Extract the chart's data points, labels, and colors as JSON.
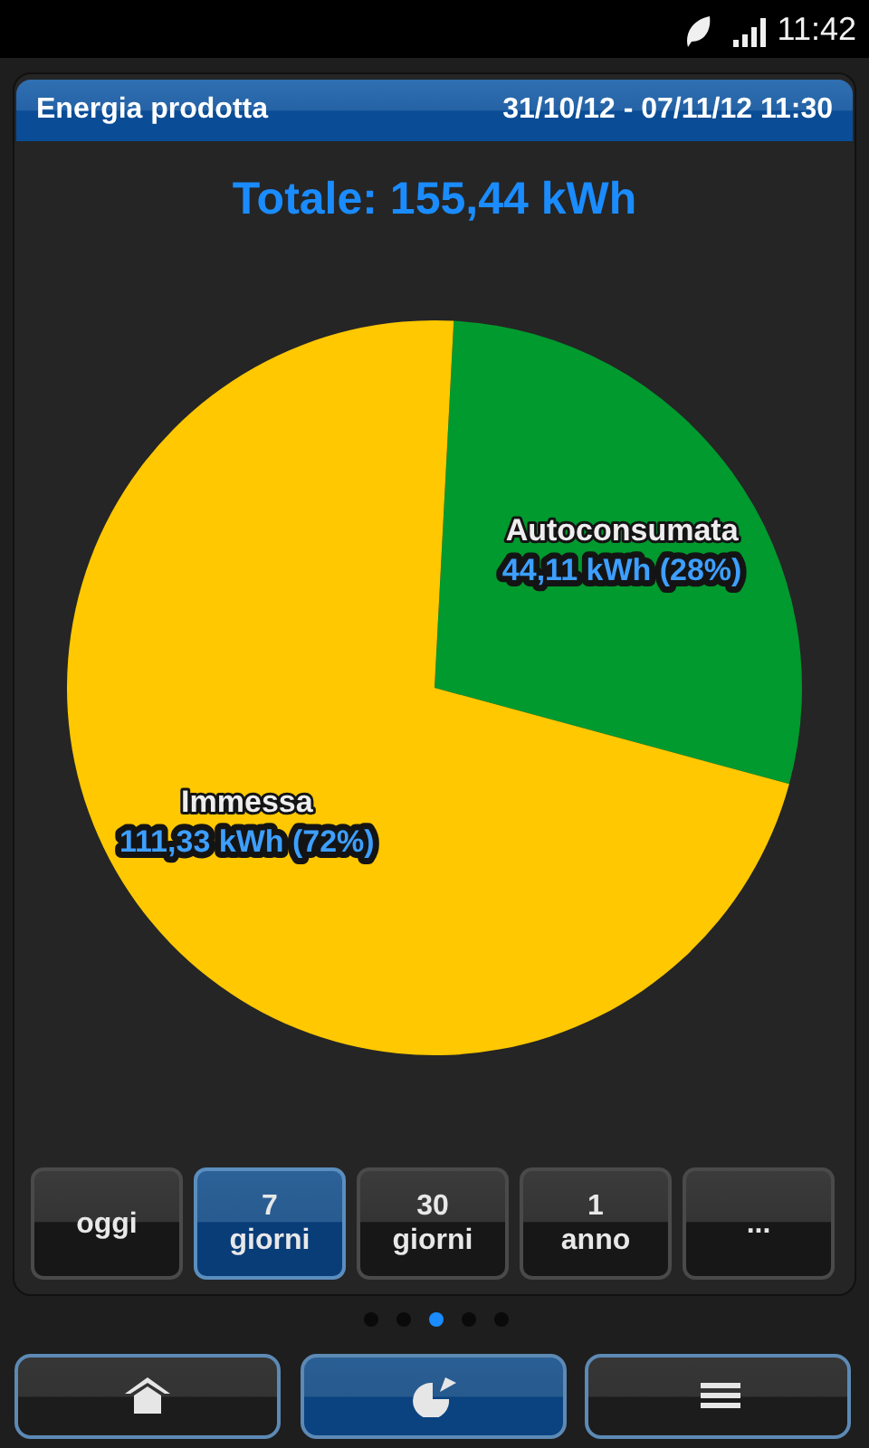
{
  "chart_data": {
    "type": "pie",
    "title": "Energia prodotta",
    "subtitle": "31/10/12 - 07/11/12 11:30",
    "categories": [
      "Autoconsumata",
      "Immessa"
    ],
    "values": [
      44.11,
      111.33
    ],
    "colors": [
      "#009a2e",
      "#ffc800"
    ],
    "value_labels": [
      "44,11 kWh (28%)",
      "111,33 kWh (72%)"
    ],
    "annotations": [
      "Totale: 155,44 kWh",
      "oggi",
      "7 giorni",
      "30 giorni",
      "1 anno",
      "...",
      "11:42"
    ],
    "legend": false
  }
}
